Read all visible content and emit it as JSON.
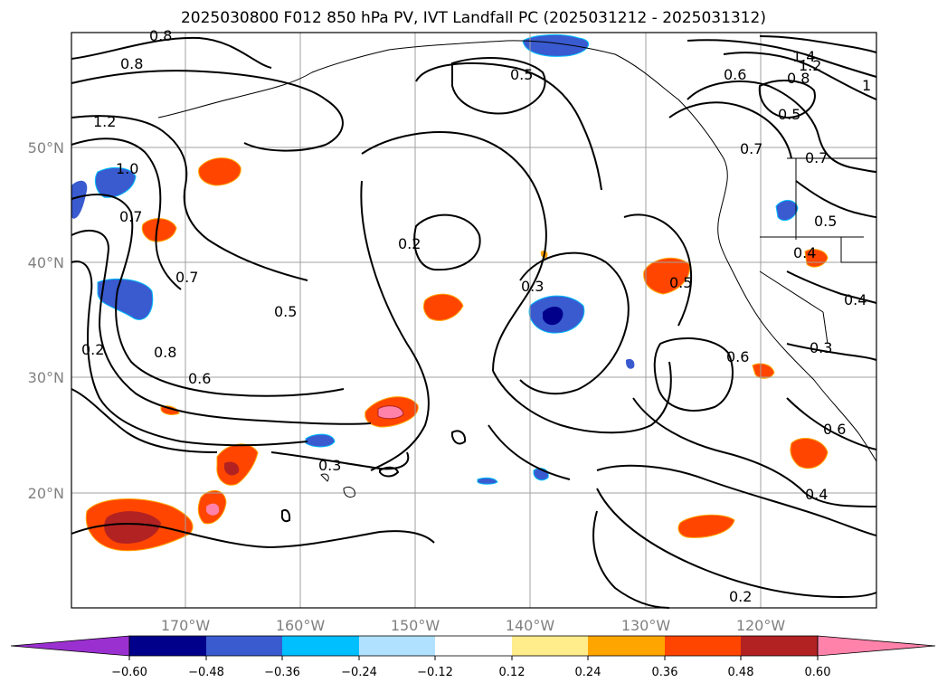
{
  "title": "2025030800 F012 850 hPa PV, IVT Landfall PC (2025031212 - 2025031312)",
  "map": {
    "lat_ticks": [
      "50°N",
      "40°N",
      "30°N",
      "20°N"
    ],
    "lon_ticks": [
      "170°W",
      "160°W",
      "150°W",
      "140°W",
      "130°W",
      "120°W"
    ],
    "contour_labels": [
      "0.8",
      "0.8",
      "1.2",
      "1.0",
      "0.7",
      "0.7",
      "0.2",
      "0.8",
      "0.6",
      "0.5",
      "0.2",
      "0.3",
      "0.5",
      "0.3",
      "0.5",
      "0.6",
      "0.7",
      "0.7",
      "0.5",
      "0.4",
      "0.4",
      "0.3",
      "0.6",
      "0.4",
      "0.2",
      "1.4",
      "1.2",
      "0.8",
      "0.6",
      "0.5",
      "1"
    ]
  },
  "colorbar": {
    "ticks": [
      "−0.60",
      "−0.48",
      "−0.36",
      "−0.24",
      "−0.12",
      "0.12",
      "0.24",
      "0.36",
      "0.48",
      "0.60"
    ],
    "colors": [
      "#9b30d0",
      "#00008b",
      "#3a5bd0",
      "#00bfff",
      "#b0e2ff",
      "#ffffff",
      "#ffec8b",
      "#ffa500",
      "#ff4500",
      "#b22222",
      "#ff82ab"
    ]
  }
}
